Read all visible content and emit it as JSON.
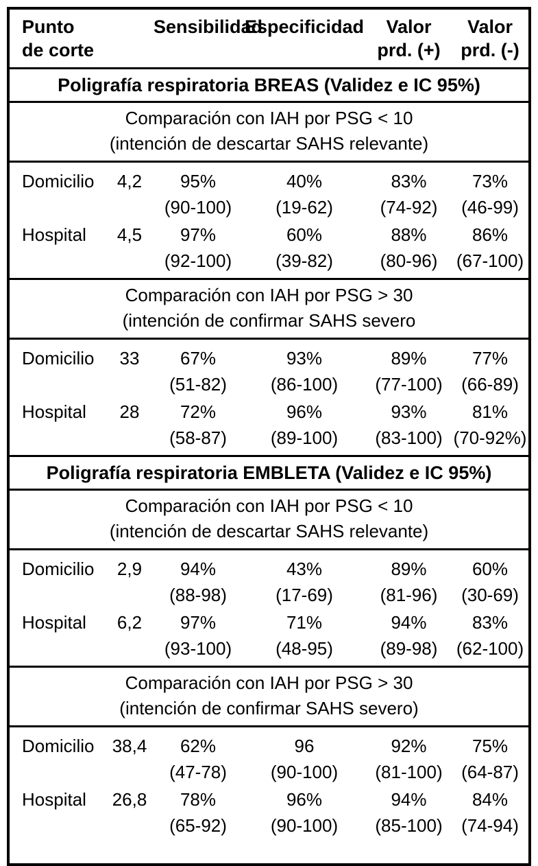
{
  "colors": {
    "text": "#000000",
    "background": "#ffffff",
    "border": "#000000"
  },
  "header": {
    "punto_line1": "Punto",
    "punto_line2": "de corte",
    "sensibilidad": "Sensibilidad",
    "especificidad": "Especificidad",
    "valor_pos_line1": "Valor",
    "valor_pos_line2": "prd. (+)",
    "valor_neg_line1": "Valor",
    "valor_neg_line2": "prd. (-)"
  },
  "sections": [
    {
      "title": "Poligrafía respiratoria BREAS (Validez e IC 95%)",
      "blocks": [
        {
          "note_line1": "Comparación con IAH por PSG < 10",
          "note_line2": "(intención de descartar SAHS relevante)",
          "rows": [
            {
              "location": "Domicilio",
              "cutoff": "4,2",
              "sens": "95%",
              "sens_ci": "(90-100)",
              "espec": "40%",
              "espec_ci": "(19-62)",
              "vpp": "83%",
              "vpp_ci": "(74-92)",
              "vpn": "73%",
              "vpn_ci": "(46-99)"
            },
            {
              "location": "Hospital",
              "cutoff": "4,5",
              "sens": "97%",
              "sens_ci": "(92-100)",
              "espec": "60%",
              "espec_ci": "(39-82)",
              "vpp": "88%",
              "vpp_ci": "(80-96)",
              "vpn": "86%",
              "vpn_ci": "(67-100)"
            }
          ]
        },
        {
          "note_line1": "Comparación con IAH por PSG > 30",
          "note_line2": "(intención de confirmar SAHS severo",
          "rows": [
            {
              "location": "Domicilio",
              "cutoff": "33",
              "sens": "67%",
              "sens_ci": "(51-82)",
              "espec": "93%",
              "espec_ci": "(86-100)",
              "vpp": "89%",
              "vpp_ci": "(77-100)",
              "vpn": "77%",
              "vpn_ci": "(66-89)"
            },
            {
              "location": "Hospital",
              "cutoff": "28",
              "sens": "72%",
              "sens_ci": "(58-87)",
              "espec": "96%",
              "espec_ci": "(89-100)",
              "vpp": "93%",
              "vpp_ci": "(83-100)",
              "vpn": "81%",
              "vpn_ci": "(70-92%)"
            }
          ]
        }
      ]
    },
    {
      "title": "Poligrafía respiratoria EMBLETA (Validez e IC 95%)",
      "blocks": [
        {
          "note_line1": "Comparación con IAH por PSG < 10",
          "note_line2": "(intención de descartar SAHS relevante)",
          "rows": [
            {
              "location": "Domicilio",
              "cutoff": "2,9",
              "sens": "94%",
              "sens_ci": "(88-98)",
              "espec": "43%",
              "espec_ci": "(17-69)",
              "vpp": "89%",
              "vpp_ci": "(81-96)",
              "vpn": "60%",
              "vpn_ci": "(30-69)"
            },
            {
              "location": "Hospital",
              "cutoff": "6,2",
              "sens": "97%",
              "sens_ci": "(93-100)",
              "espec": "71%",
              "espec_ci": "(48-95)",
              "vpp": "94%",
              "vpp_ci": "(89-98)",
              "vpn": "83%",
              "vpn_ci": "(62-100)"
            }
          ]
        },
        {
          "note_line1": "Comparación con IAH por PSG > 30",
          "note_line2": "(intención de confirmar SAHS severo)",
          "rows": [
            {
              "location": "Domicilio",
              "cutoff": "38,4",
              "sens": "62%",
              "sens_ci": "(47-78)",
              "espec": "96",
              "espec_ci": "(90-100)",
              "vpp": "92%",
              "vpp_ci": "(81-100)",
              "vpn": "75%",
              "vpn_ci": "(64-87)"
            },
            {
              "location": "Hospital",
              "cutoff": "26,8",
              "sens": "78%",
              "sens_ci": "(65-92)",
              "espec": "96%",
              "espec_ci": "(90-100)",
              "vpp": "94%",
              "vpp_ci": "(85-100)",
              "vpn": "84%",
              "vpn_ci": "(74-94)"
            }
          ]
        }
      ]
    }
  ]
}
